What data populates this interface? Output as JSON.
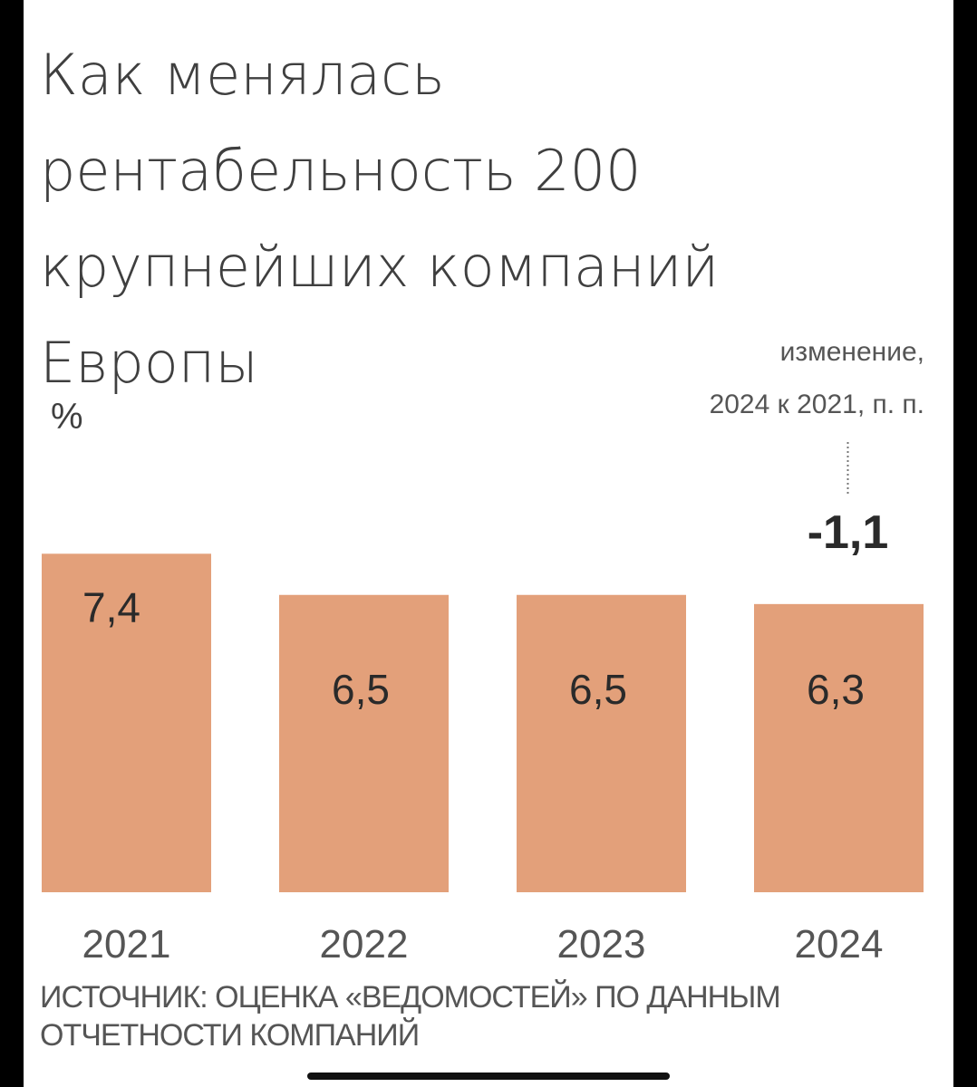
{
  "title": "Как менялась рентабельность 200 крупнейших компаний Европы",
  "unit": "%",
  "change_label_line1": "изменение,",
  "change_label_line2": "2024 к 2021, п. п.",
  "change_value_text": "-1,1",
  "source": "ИСТОЧНИК: ОЦЕНКА «ВЕДОМОСТЕЙ» ПО ДАННЫМ ОТЧЕТНОСТИ КОМПАНИЙ",
  "chart_data": {
    "type": "bar",
    "categories": [
      "2021",
      "2022",
      "2023",
      "2024"
    ],
    "values": [
      7.4,
      6.5,
      6.5,
      6.3
    ],
    "value_labels": [
      "7,4",
      "6,5",
      "6,5",
      "6,3"
    ],
    "title": "Как менялась рентабельность 200 крупнейших компаний Европы",
    "ylabel": "%",
    "change": -1.1,
    "grid": false,
    "bar_color": "#e3a07a"
  }
}
